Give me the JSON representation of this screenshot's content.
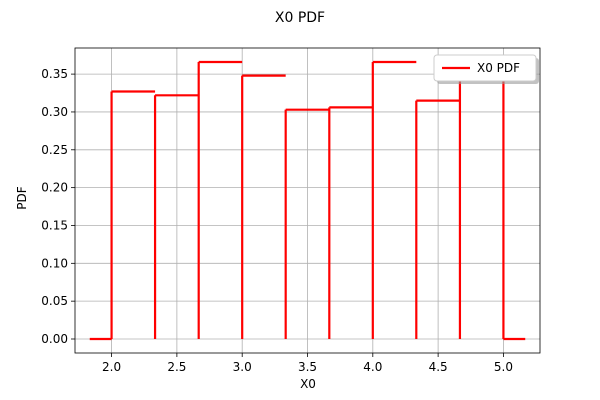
{
  "chart_data": {
    "type": "line",
    "title": "X0 PDF",
    "xlabel": "X0",
    "ylabel": "PDF",
    "xlim": [
      1.72,
      5.28
    ],
    "ylim": [
      -0.0185,
      0.3845
    ],
    "xticks": [
      2.0,
      2.5,
      3.0,
      3.5,
      4.0,
      4.5,
      5.0
    ],
    "xtick_labels": [
      "2.0",
      "2.5",
      "3.0",
      "3.5",
      "4.0",
      "4.5",
      "5.0"
    ],
    "yticks": [
      0.0,
      0.05,
      0.1,
      0.15,
      0.2,
      0.25,
      0.3,
      0.35
    ],
    "ytick_labels": [
      "0.00",
      "0.05",
      "0.10",
      "0.15",
      "0.20",
      "0.25",
      "0.30",
      "0.35"
    ],
    "grid": true,
    "legend": "top-right",
    "series": [
      {
        "name": "X0 PDF",
        "color": "#ff0000",
        "bins": [
          {
            "left": 2.0,
            "right": 2.333,
            "value": 0.327
          },
          {
            "left": 2.333,
            "right": 2.667,
            "value": 0.322
          },
          {
            "left": 2.667,
            "right": 3.0,
            "value": 0.366
          },
          {
            "left": 3.0,
            "right": 3.333,
            "value": 0.348
          },
          {
            "left": 3.333,
            "right": 3.667,
            "value": 0.303
          },
          {
            "left": 3.667,
            "right": 4.0,
            "value": 0.306
          },
          {
            "left": 4.0,
            "right": 4.333,
            "value": 0.366
          },
          {
            "left": 4.333,
            "right": 4.667,
            "value": 0.315
          },
          {
            "left": 4.667,
            "right": 5.0,
            "value": 0.347
          }
        ],
        "support": [
          1.833,
          5.167
        ]
      }
    ]
  }
}
